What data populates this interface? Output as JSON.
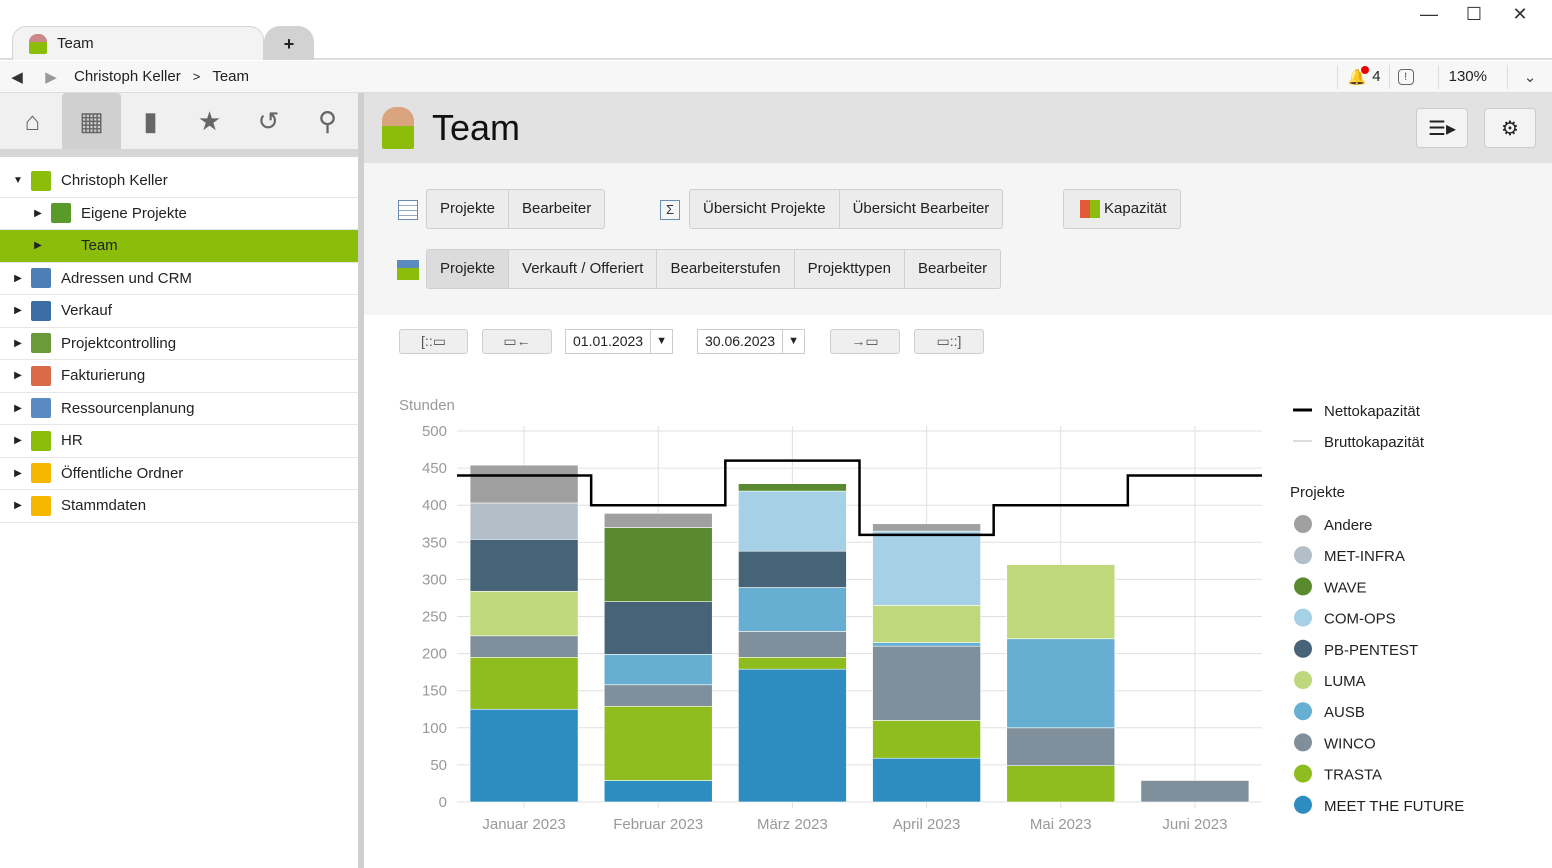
{
  "window": {
    "tab_title": "Team",
    "new_tab": "+",
    "minimize": "—",
    "maximize": "☐",
    "close": "✕"
  },
  "breadcrumb": {
    "items": [
      "Christoph Keller",
      "Team"
    ],
    "separator": ">"
  },
  "status": {
    "notifications": "4",
    "zoom": "130%"
  },
  "sidebar": {
    "tree": [
      {
        "label": "Christoph Keller",
        "level": 0,
        "expanded": true,
        "color": "#8cbd0a"
      },
      {
        "label": "Eigene Projekte",
        "level": 1,
        "color": "#5a9a2a"
      },
      {
        "label": "Team",
        "level": 1,
        "selected": true,
        "color": "#8cbd0a"
      },
      {
        "label": "Adressen und CRM",
        "level": 0,
        "color": "#4d7fb5"
      },
      {
        "label": "Verkauf",
        "level": 0,
        "color": "#3a6ea5"
      },
      {
        "label": "Projektcontrolling",
        "level": 0,
        "color": "#6a9a3a"
      },
      {
        "label": "Fakturierung",
        "level": 0,
        "color": "#d86a4a"
      },
      {
        "label": "Ressourcenplanung",
        "level": 0,
        "color": "#5a8ac0"
      },
      {
        "label": "HR",
        "level": 0,
        "color": "#8cbd0a"
      },
      {
        "label": "Öffentliche Ordner",
        "level": 0,
        "color": "#f5b800"
      },
      {
        "label": "Stammdaten",
        "level": 0,
        "color": "#f5b800"
      }
    ]
  },
  "header": {
    "title": "Team"
  },
  "toolbar": {
    "table_group": [
      "Projekte",
      "Bearbeiter"
    ],
    "overview_group": [
      "Übersicht Projekte",
      "Übersicht Bearbeiter"
    ],
    "capacity": "Kapazität",
    "chart_group": [
      "Projekte",
      "Verkauft / Offeriert",
      "Bearbeiterstufen",
      "Projekttypen",
      "Bearbeiter"
    ],
    "date_from": "01.01.2023",
    "date_to": "30.06.2023"
  },
  "chart_data": {
    "type": "bar",
    "stacked": true,
    "ylabel": "Stunden",
    "ylim": [
      0,
      500
    ],
    "yticks": [
      0,
      50,
      100,
      150,
      200,
      250,
      300,
      350,
      400,
      450,
      500
    ],
    "categories": [
      "Januar 2023",
      "Februar 2023",
      "März 2023",
      "April 2023",
      "Mai 2023",
      "Juni 2023"
    ],
    "legend_title": "Projekte",
    "series": [
      {
        "name": "MEET THE FUTURE",
        "color": "#2e8dc0",
        "values": [
          125,
          29,
          179,
          59,
          0,
          0
        ]
      },
      {
        "name": "TRASTA",
        "color": "#8fbc1e",
        "values": [
          70,
          100,
          16,
          51,
          49,
          0
        ]
      },
      {
        "name": "WINCO",
        "color": "#7f909c",
        "values": [
          29,
          29,
          35,
          100,
          51,
          29
        ]
      },
      {
        "name": "AUSB",
        "color": "#66afd3",
        "values": [
          0,
          41,
          59,
          5,
          120,
          0
        ]
      },
      {
        "name": "LUMA",
        "color": "#bfd87b",
        "values": [
          60,
          0,
          0,
          50,
          100,
          0
        ]
      },
      {
        "name": "PB-PENTEST",
        "color": "#476377",
        "values": [
          70,
          71,
          49,
          0,
          0,
          0
        ]
      },
      {
        "name": "COM-OPS",
        "color": "#a5d0e5",
        "values": [
          0,
          0,
          81,
          100,
          0,
          0
        ]
      },
      {
        "name": "WAVE",
        "color": "#5a8a30",
        "values": [
          0,
          100,
          10,
          0,
          0,
          0
        ]
      },
      {
        "name": "MET-INFRA",
        "color": "#b2bec8",
        "values": [
          49,
          0,
          0,
          0,
          0,
          0
        ]
      },
      {
        "name": "Andere",
        "color": "#a0a0a0",
        "values": [
          51,
          19,
          0,
          10,
          0,
          0
        ]
      }
    ],
    "lines": [
      {
        "name": "Nettokapazität",
        "color": "#000000",
        "values": [
          440,
          400,
          460,
          360,
          400,
          440
        ]
      },
      {
        "name": "Bruttokapazität",
        "color": "#dddddd",
        "values": []
      }
    ]
  }
}
